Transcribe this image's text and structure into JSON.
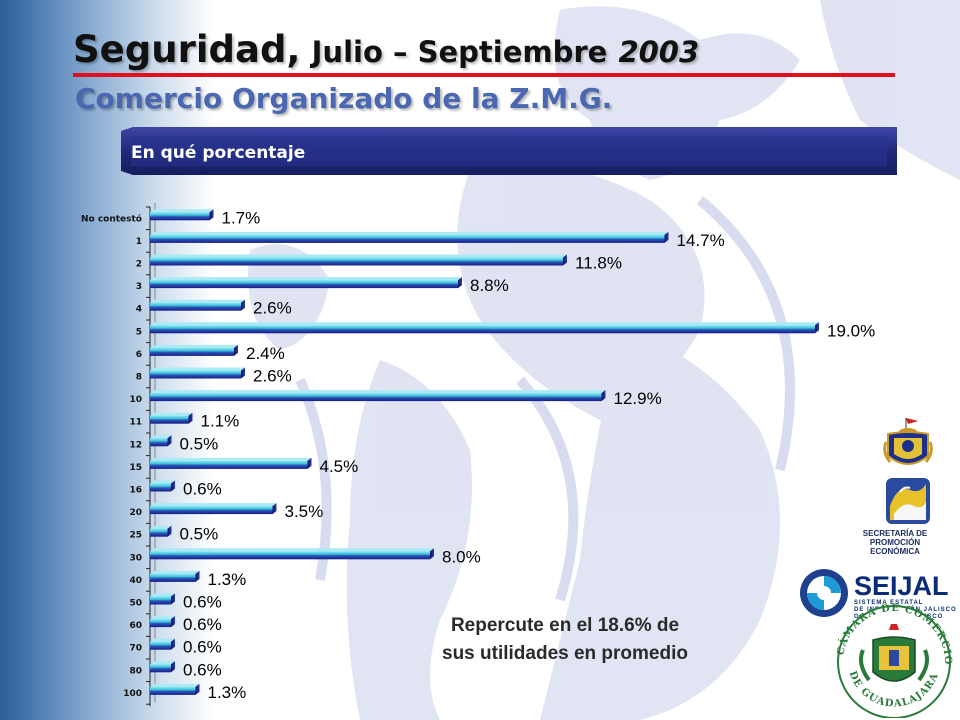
{
  "title": {
    "part1": "Seguridad,",
    "part2": "Julio – Septiembre",
    "year": "2003"
  },
  "subtitle": "Comercio Organizado de la Z.M.G.",
  "section_label": "En qué porcentaje",
  "footnote": [
    "Repercute en el 18.6% de",
    "sus utilidades en promedio"
  ],
  "colors": {
    "title_rule": "#e0101e",
    "subtitle": "#4a68b2",
    "bar_dark": "#1a1f8c",
    "bar_light": "#35c0d8",
    "section_band": "#1f2870"
  },
  "logos": {
    "seijal": {
      "name": "SEIJAL",
      "line1": "SISTEMA ESTATAL",
      "line2": "DE INFORMACIÓN JALISCO",
      "line3": "GOBIERNO DE JALISCO"
    },
    "promocion": {
      "line1": "SECRETARÍA DE",
      "line2": "PROMOCIÓN",
      "line3": "ECONÓMICA"
    },
    "camara": {
      "name": "CÁMARA DE COMERCIO DE GUADALAJARA"
    }
  },
  "icons": [
    "jalisco-shield-icon",
    "promocion-economica-logo",
    "seijal-logo",
    "camara-comercio-seal"
  ],
  "chart_data": {
    "type": "bar",
    "orientation": "horizontal",
    "categories": [
      "No contestó",
      "1",
      "2",
      "3",
      "4",
      "5",
      "6",
      "8",
      "10",
      "11",
      "12",
      "15",
      "16",
      "20",
      "25",
      "30",
      "40",
      "50",
      "60",
      "70",
      "80",
      "100"
    ],
    "values": [
      1.7,
      14.7,
      11.8,
      8.8,
      2.6,
      19.0,
      2.4,
      2.6,
      12.9,
      1.1,
      0.5,
      4.5,
      0.6,
      3.5,
      0.5,
      8.0,
      1.3,
      0.6,
      0.6,
      0.6,
      0.6,
      1.3
    ],
    "value_labels": [
      "1.7%",
      "14.7%",
      "11.8%",
      "8.8%",
      "2.6%",
      "19.0%",
      "2.4%",
      "2.6%",
      "12.9%",
      "1.1%",
      "0.5%",
      "4.5%",
      "0.6%",
      "3.5%",
      "0.5%",
      "8.0%",
      "1.3%",
      "0.6%",
      "0.6%",
      "0.6%",
      "0.6%",
      "1.3%"
    ],
    "unit": "%",
    "xlim": [
      0,
      19.0
    ],
    "grid": false,
    "legend": "none",
    "title": "",
    "xlabel": "",
    "ylabel": ""
  }
}
